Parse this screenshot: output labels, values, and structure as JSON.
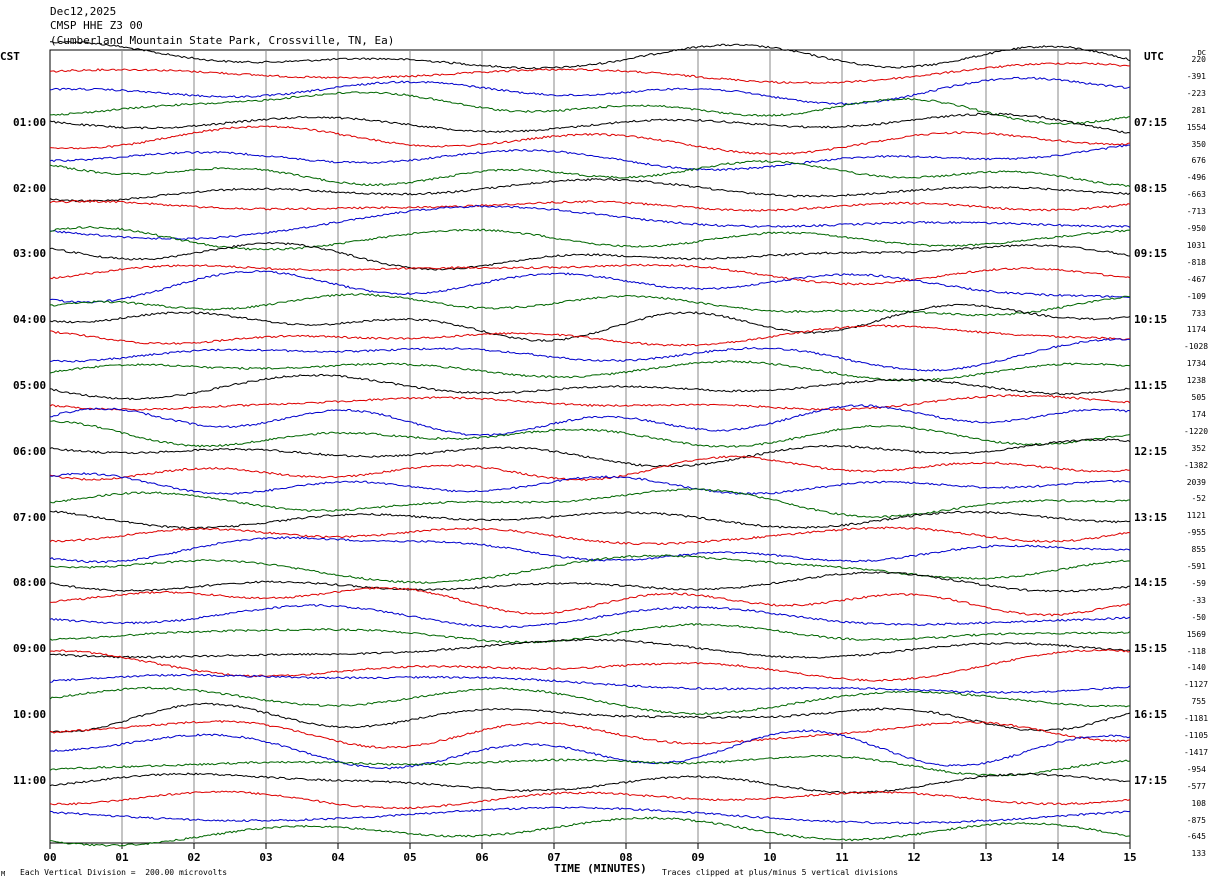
{
  "header": {
    "date": "Dec12,2025",
    "station": "CMSP HHE Z3 00",
    "location": "(Cumberland Mountain State Park, Crossville, TN, Ea)"
  },
  "labels": {
    "left_tz": "CST",
    "right_tz": "UTC",
    "dc": "DC"
  },
  "footer": {
    "scale": "Each Vertical Division =  200.00 microvolts",
    "clip": "Traces clipped at plus/minus 5 vertical divisions",
    "corner_mark": "M"
  },
  "chart_data": {
    "type": "line",
    "title": "",
    "xlabel": "TIME (MINUTES)",
    "ylabel": "",
    "xlim": [
      0,
      15
    ],
    "x_ticks": [
      "00",
      "01",
      "02",
      "03",
      "04",
      "05",
      "06",
      "07",
      "08",
      "09",
      "10",
      "11",
      "12",
      "13",
      "14",
      "15"
    ],
    "left_time_labels": [
      "01:00",
      "02:00",
      "03:00",
      "04:00",
      "05:00",
      "06:00",
      "07:00",
      "08:00",
      "09:00",
      "10:00",
      "11:00"
    ],
    "right_time_labels": [
      "07:15",
      "08:15",
      "09:15",
      "10:15",
      "11:15",
      "12:15",
      "13:15",
      "14:15",
      "15:15",
      "16:15",
      "17:15"
    ],
    "trace_colors": [
      "#000000",
      "#dd0000",
      "#0000cc",
      "#006600"
    ],
    "trace_count": 48,
    "dc_offsets": [
      "220",
      "-391",
      "-223",
      "281",
      "1554",
      "350",
      "676",
      "-496",
      "-663",
      "-713",
      "-950",
      "1031",
      "-818",
      "-467",
      "-109",
      "733",
      "1174",
      "-1028",
      "1734",
      "1238",
      "505",
      "174",
      "-1220",
      "352",
      "-1382",
      "2039",
      "-52",
      "1121",
      "-955",
      "855",
      "-591",
      "-59",
      "-33",
      "-50",
      "1569",
      "-118",
      "-140",
      "-1127",
      "755",
      "-1181",
      "-1105",
      "-1417",
      "-954",
      "-577",
      "108",
      "-875",
      "-645",
      "133"
    ],
    "grid": "vertical lines every minute"
  }
}
